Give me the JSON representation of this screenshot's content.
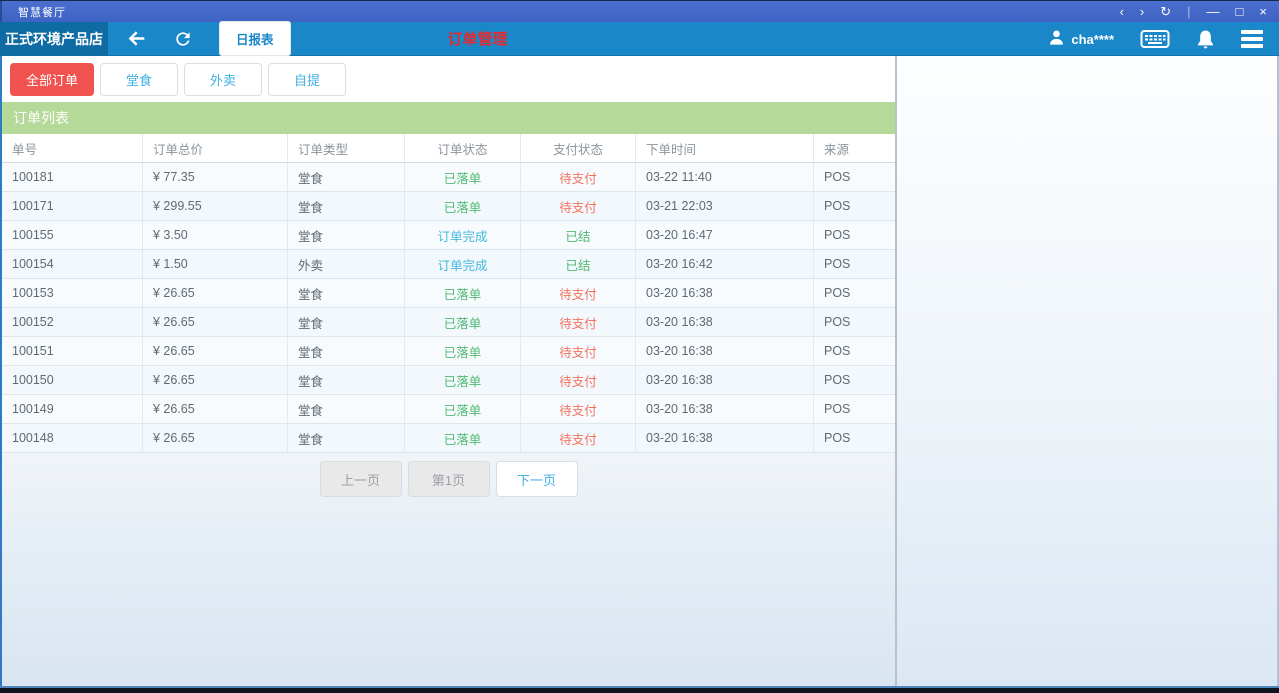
{
  "window": {
    "title": "智慧餐厅",
    "controls": [
      {
        "name": "nav-back",
        "glyph": "‹"
      },
      {
        "name": "nav-forward",
        "glyph": "›"
      },
      {
        "name": "reload",
        "glyph": "↻"
      },
      {
        "name": "divider",
        "glyph": "|"
      },
      {
        "name": "minimize",
        "glyph": "—"
      },
      {
        "name": "restore",
        "glyph": "□"
      },
      {
        "name": "close",
        "glyph": "×"
      }
    ]
  },
  "navbar": {
    "store_name": "正式环境产品店",
    "report_label": "日报表",
    "page_title": "订单管理",
    "username": "cha****"
  },
  "filters": [
    {
      "key": "all",
      "label": "全部订单",
      "active": true
    },
    {
      "key": "dine-in",
      "label": "堂食",
      "active": false
    },
    {
      "key": "takeout",
      "label": "外卖",
      "active": false
    },
    {
      "key": "pickup",
      "label": "自提",
      "active": false
    }
  ],
  "panel": {
    "title": "订单列表"
  },
  "table": {
    "columns": [
      "单号",
      "订单总价",
      "订单类型",
      "订单状态",
      "支付状态",
      "下单时间",
      "来源"
    ],
    "rows": [
      {
        "id": "100181",
        "total": "¥ 77.35",
        "type": "堂食",
        "status": "已落单",
        "status_color": "green",
        "pay": "待支付",
        "pay_color": "red",
        "time": "03-22 11:40",
        "source": "POS"
      },
      {
        "id": "100171",
        "total": "¥ 299.55",
        "type": "堂食",
        "status": "已落单",
        "status_color": "green",
        "pay": "待支付",
        "pay_color": "red",
        "time": "03-21 22:03",
        "source": "POS"
      },
      {
        "id": "100155",
        "total": "¥ 3.50",
        "type": "堂食",
        "status": "订单完成",
        "status_color": "blue",
        "pay": "已结",
        "pay_color": "green",
        "time": "03-20 16:47",
        "source": "POS"
      },
      {
        "id": "100154",
        "total": "¥ 1.50",
        "type": "外卖",
        "status": "订单完成",
        "status_color": "blue",
        "pay": "已结",
        "pay_color": "green",
        "time": "03-20 16:42",
        "source": "POS"
      },
      {
        "id": "100153",
        "total": "¥ 26.65",
        "type": "堂食",
        "status": "已落单",
        "status_color": "green",
        "pay": "待支付",
        "pay_color": "red",
        "time": "03-20 16:38",
        "source": "POS"
      },
      {
        "id": "100152",
        "total": "¥ 26.65",
        "type": "堂食",
        "status": "已落单",
        "status_color": "green",
        "pay": "待支付",
        "pay_color": "red",
        "time": "03-20 16:38",
        "source": "POS"
      },
      {
        "id": "100151",
        "total": "¥ 26.65",
        "type": "堂食",
        "status": "已落单",
        "status_color": "green",
        "pay": "待支付",
        "pay_color": "red",
        "time": "03-20 16:38",
        "source": "POS"
      },
      {
        "id": "100150",
        "total": "¥ 26.65",
        "type": "堂食",
        "status": "已落单",
        "status_color": "green",
        "pay": "待支付",
        "pay_color": "red",
        "time": "03-20 16:38",
        "source": "POS"
      },
      {
        "id": "100149",
        "total": "¥ 26.65",
        "type": "堂食",
        "status": "已落单",
        "status_color": "green",
        "pay": "待支付",
        "pay_color": "red",
        "time": "03-20 16:38",
        "source": "POS"
      },
      {
        "id": "100148",
        "total": "¥ 26.65",
        "type": "堂食",
        "status": "已落单",
        "status_color": "green",
        "pay": "待支付",
        "pay_color": "red",
        "time": "03-20 16:38",
        "source": "POS"
      }
    ]
  },
  "pagination": {
    "prev": "上一页",
    "current": "第1页",
    "next": "下一页"
  },
  "colors": {
    "titlebar_bg": "#3e63c4",
    "navbar_bg": "#1a87c9",
    "store_bg": "#0f6ba3",
    "accent_red": "#f0534f",
    "page_title_red": "#e82a2d",
    "link_blue": "#3fb0e4",
    "panel_green": "#b5d998",
    "status_green": "#4fb873",
    "status_red": "#f4705e",
    "status_blue": "#43b8dc"
  }
}
